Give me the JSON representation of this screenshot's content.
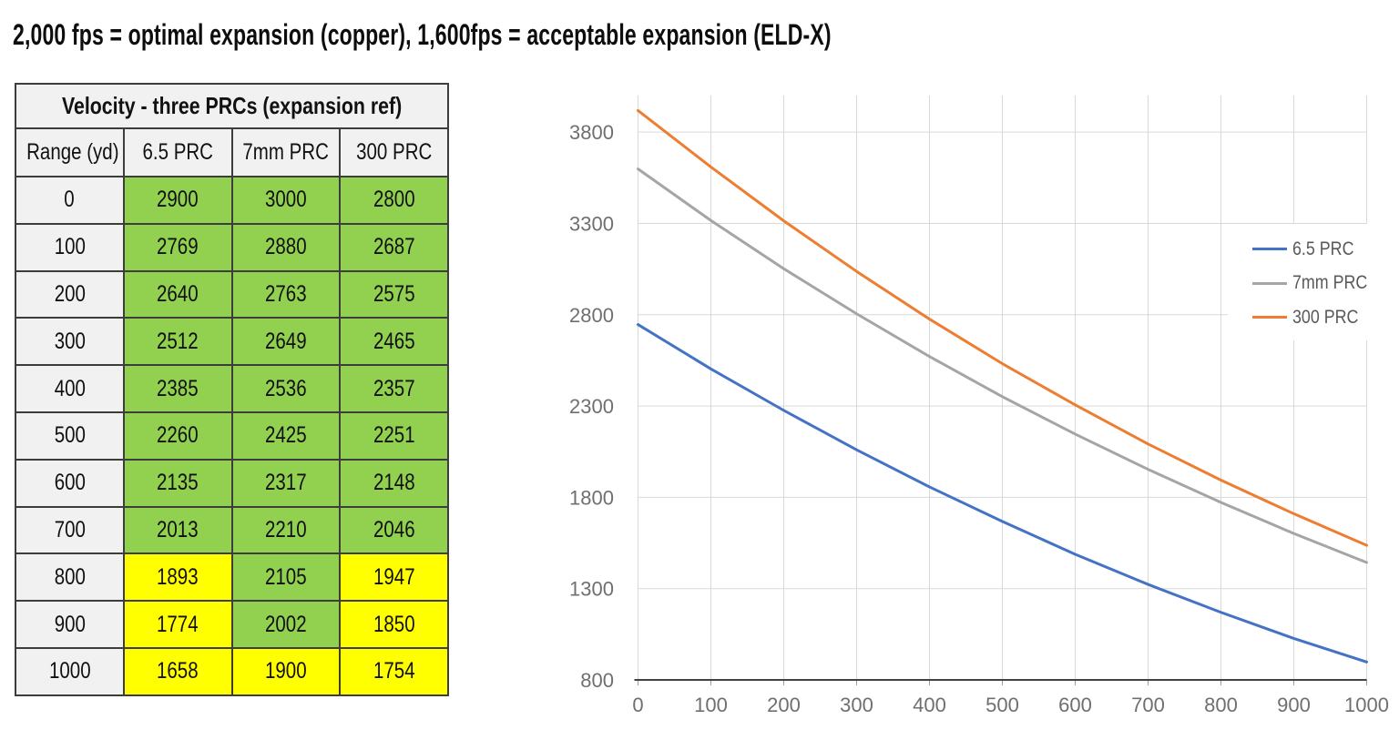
{
  "page_title": "2,000 fps = optimal expansion (copper), 1,600fps = acceptable expansion (ELD-X)",
  "table": {
    "title": "Velocity - three PRCs (expansion ref)",
    "columns": [
      "Range (yd)",
      "6.5 PRC",
      "7mm PRC",
      "300 PRC"
    ],
    "rows": [
      {
        "range": "0",
        "values": [
          "2900",
          "3000",
          "2800"
        ],
        "colors": [
          "green",
          "green",
          "green"
        ]
      },
      {
        "range": "100",
        "values": [
          "2769",
          "2880",
          "2687"
        ],
        "colors": [
          "green",
          "green",
          "green"
        ]
      },
      {
        "range": "200",
        "values": [
          "2640",
          "2763",
          "2575"
        ],
        "colors": [
          "green",
          "green",
          "green"
        ]
      },
      {
        "range": "300",
        "values": [
          "2512",
          "2649",
          "2465"
        ],
        "colors": [
          "green",
          "green",
          "green"
        ]
      },
      {
        "range": "400",
        "values": [
          "2385",
          "2536",
          "2357"
        ],
        "colors": [
          "green",
          "green",
          "green"
        ]
      },
      {
        "range": "500",
        "values": [
          "2260",
          "2425",
          "2251"
        ],
        "colors": [
          "green",
          "green",
          "green"
        ]
      },
      {
        "range": "600",
        "values": [
          "2135",
          "2317",
          "2148"
        ],
        "colors": [
          "green",
          "green",
          "green"
        ]
      },
      {
        "range": "700",
        "values": [
          "2013",
          "2210",
          "2046"
        ],
        "colors": [
          "green",
          "green",
          "green"
        ]
      },
      {
        "range": "800",
        "values": [
          "1893",
          "2105",
          "1947"
        ],
        "colors": [
          "yellow",
          "green",
          "yellow"
        ]
      },
      {
        "range": "900",
        "values": [
          "1774",
          "2002",
          "1850"
        ],
        "colors": [
          "yellow",
          "green",
          "yellow"
        ]
      },
      {
        "range": "1000",
        "values": [
          "1658",
          "1900",
          "1754"
        ],
        "colors": [
          "yellow",
          "yellow",
          "yellow"
        ]
      }
    ],
    "colors": {
      "green": "#92D050",
      "yellow": "#FFFF00",
      "header_bg": "#F1F1F1",
      "border": "#3D3D3D"
    }
  },
  "chart_data": {
    "type": "line",
    "title": "",
    "xlabel": "",
    "ylabel": "",
    "x": [
      0,
      100,
      200,
      300,
      400,
      500,
      600,
      700,
      800,
      900,
      1000
    ],
    "series": [
      {
        "name": "6.5 PRC",
        "color": "#4472C4",
        "values": [
          2746,
          2503,
          2276,
          2060,
          1857,
          1668,
          1488,
          1323,
          1170,
          1027,
          898
        ]
      },
      {
        "name": "7mm PRC",
        "color": "#A5A5A5",
        "values": [
          3598,
          3316,
          3052,
          2805,
          2571,
          2351,
          2146,
          1953,
          1772,
          1602,
          1443
        ]
      },
      {
        "name": "300 PRC",
        "color": "#ED7D31",
        "values": [
          3918,
          3609,
          3314,
          3037,
          2776,
          2532,
          2306,
          2092,
          1894,
          1710,
          1537
        ]
      }
    ],
    "ylim": [
      800,
      4000
    ],
    "yticks": [
      800,
      1300,
      1800,
      2300,
      2800,
      3300,
      3800
    ],
    "xticks": [
      0,
      100,
      200,
      300,
      400,
      500,
      600,
      700,
      800,
      900,
      1000
    ],
    "grid": true,
    "legend_position": "inside-right",
    "style": {
      "gridline_color": "#D9D9D9",
      "axis_line_color": "#424242",
      "tick_label_color": "#6F6F6F",
      "tick_mark_color": "#9E9E9E",
      "legend_text_color": "#595959"
    }
  }
}
